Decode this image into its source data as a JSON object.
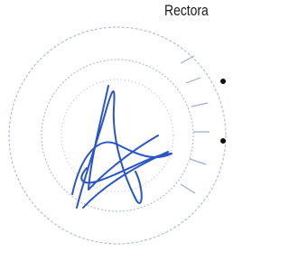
{
  "signature_block": {
    "role": "Rectora"
  }
}
